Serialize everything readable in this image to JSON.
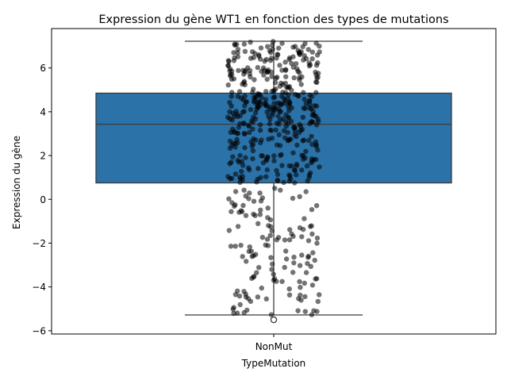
{
  "chart_data": {
    "type": "box",
    "title": "Expression du gène WT1 en fonction des types de mutations",
    "xlabel": "TypeMutation",
    "ylabel": "Expression du gène",
    "categories": [
      "NonMut"
    ],
    "ylim": [
      -6.15,
      7.8
    ],
    "yticks": [
      -6,
      -4,
      -2,
      0,
      2,
      4,
      6
    ],
    "box": {
      "category": "NonMut",
      "whisker_low": -5.28,
      "q1": 0.75,
      "median": 3.43,
      "q3": 4.85,
      "whisker_high": 7.22,
      "outliers": [
        -5.5
      ]
    },
    "jitter_points_count": 560,
    "colors": {
      "box_fill": "#2b72a8",
      "box_edge": "#3b3b3b",
      "points": "#000000",
      "point_alpha": 0.55
    },
    "grid": false,
    "legend": "none"
  }
}
